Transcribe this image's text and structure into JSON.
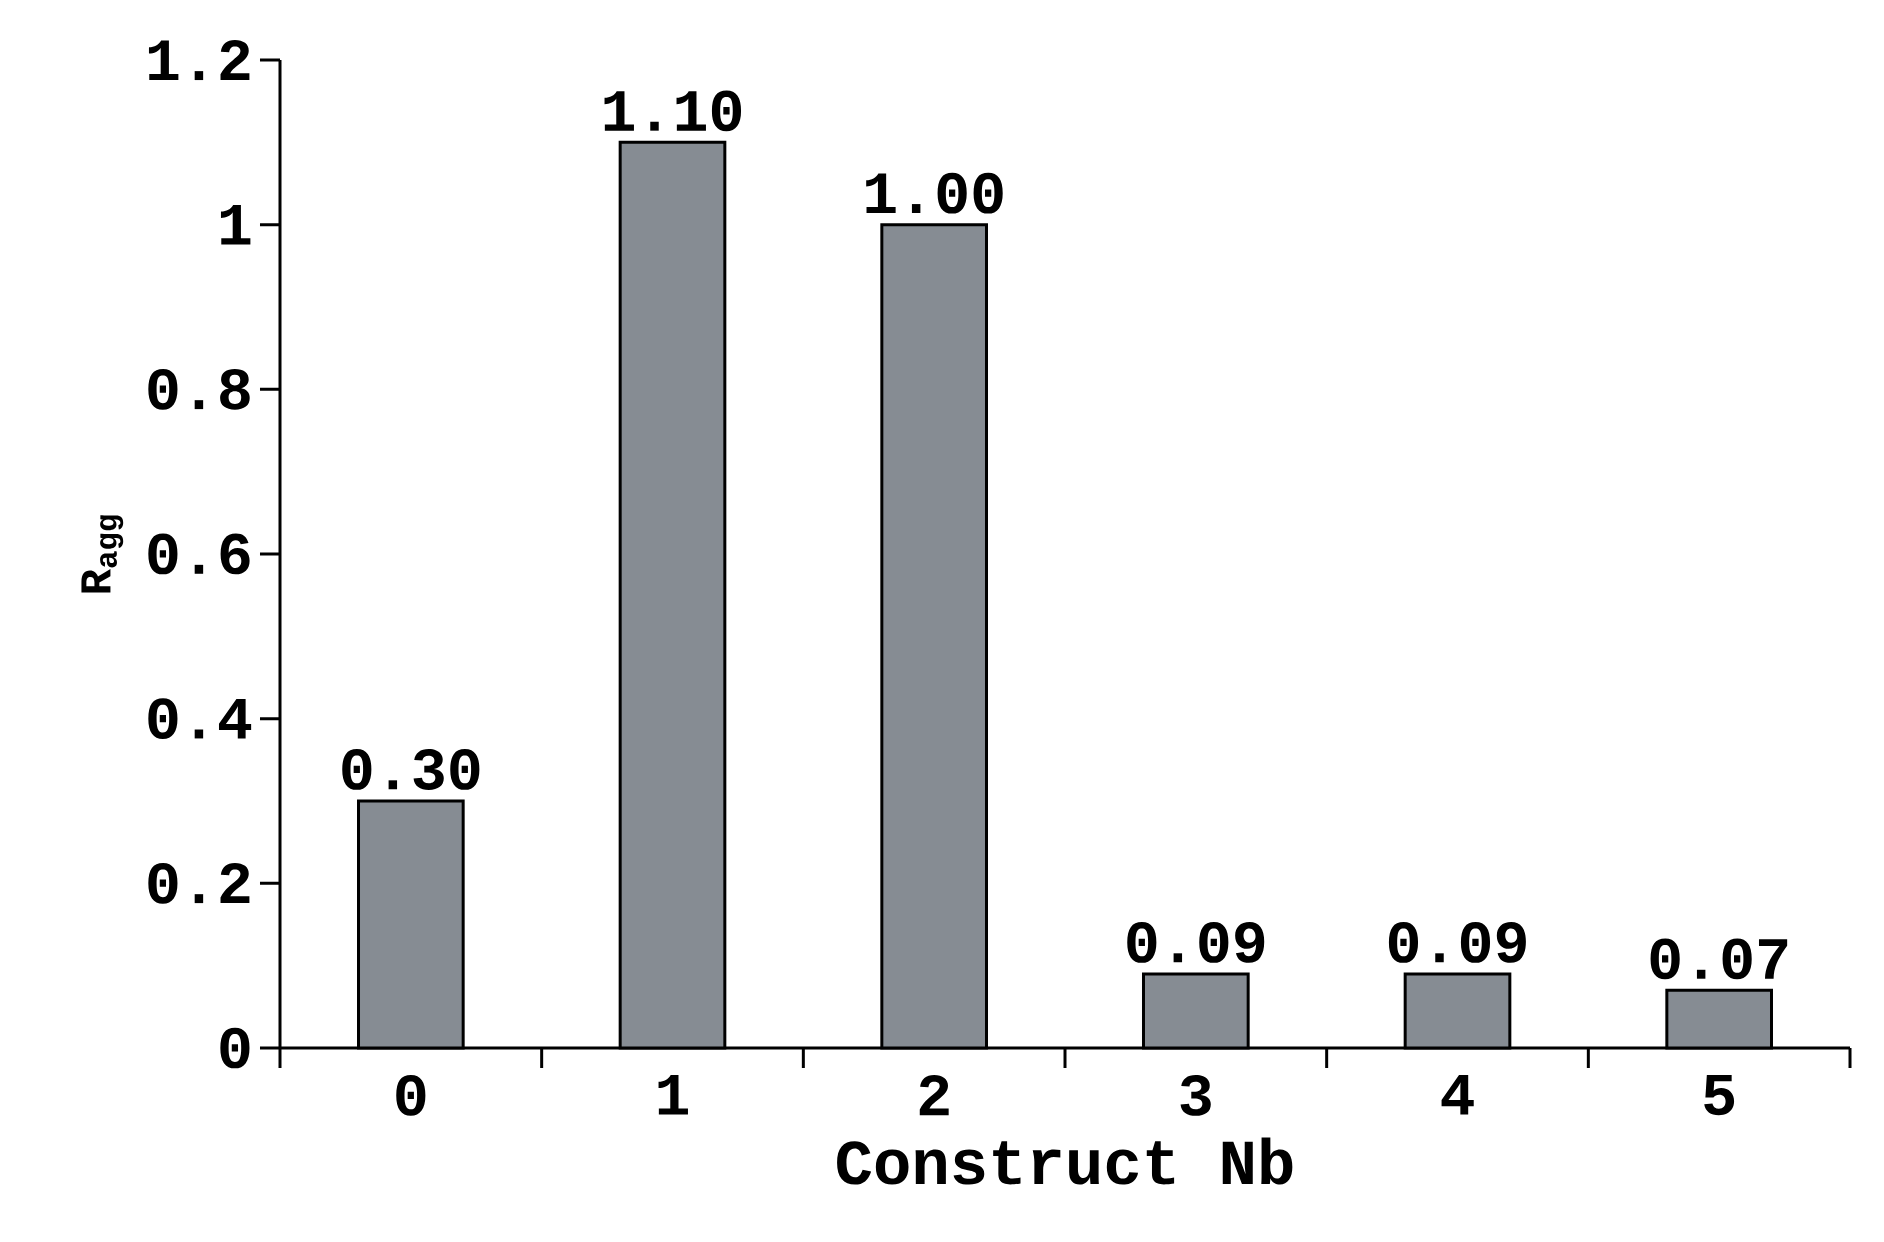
{
  "chart_data": {
    "type": "bar",
    "xlabel": "Construct Nb",
    "ylabel": "R$_{agg}$",
    "categories": [
      "0",
      "1",
      "2",
      "3",
      "4",
      "5"
    ],
    "values": [
      0.3,
      1.1,
      1.0,
      0.09,
      0.09,
      0.07
    ],
    "value_labels": [
      "0.30",
      "1.10",
      "1.00",
      "0.09",
      "0.09",
      "0.07"
    ],
    "color": "#868c93",
    "ylim": [
      0,
      1.2
    ],
    "yticks": [
      0,
      0.2,
      0.4,
      0.6,
      0.8,
      1,
      1.2
    ],
    "grid": false
  }
}
